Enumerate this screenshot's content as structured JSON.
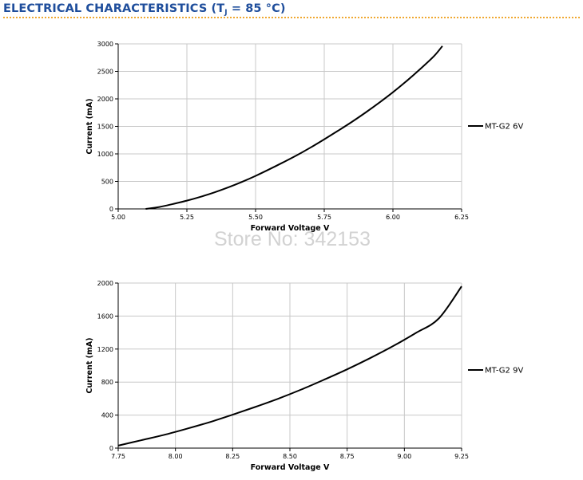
{
  "page": {
    "heading_main": "ELECTRICAL CHARACTERISTICS (T",
    "heading_sub": "J",
    "heading_tail": " = 85 °C)",
    "watermark": "Store No: 342153"
  },
  "colors": {
    "heading": "#1f4e9c",
    "rule": "#f0a830",
    "grid": "#c8c8c8",
    "curve": "#000000",
    "watermark": "#d2d2d2"
  },
  "chart_data": [
    {
      "type": "line",
      "title": "",
      "xlabel": "Forward Voltage V",
      "ylabel": "Current (mA)",
      "xlim": [
        5.0,
        6.25
      ],
      "ylim": [
        0,
        3000
      ],
      "x_ticks": [
        "5.00",
        "5.25",
        "5.50",
        "5.75",
        "6.00",
        "6.25"
      ],
      "y_ticks": [
        "0",
        "500",
        "1000",
        "1500",
        "2000",
        "2500",
        "3000"
      ],
      "grid": true,
      "legend_position": "right",
      "series": [
        {
          "name": "MT-G2 6V",
          "x": [
            5.1,
            5.15,
            5.2,
            5.25,
            5.3,
            5.35,
            5.4,
            5.45,
            5.5,
            5.55,
            5.6,
            5.65,
            5.7,
            5.75,
            5.8,
            5.85,
            5.9,
            5.95,
            6.0,
            6.05,
            6.1,
            6.15,
            6.18
          ],
          "y": [
            0,
            35,
            90,
            150,
            220,
            300,
            390,
            490,
            600,
            720,
            845,
            975,
            1115,
            1265,
            1420,
            1580,
            1750,
            1930,
            2120,
            2325,
            2545,
            2780,
            2960
          ]
        }
      ]
    },
    {
      "type": "line",
      "title": "",
      "xlabel": "Forward Voltage V",
      "ylabel": "Current (mA)",
      "xlim": [
        7.75,
        9.25
      ],
      "ylim": [
        0,
        2000
      ],
      "x_ticks": [
        "7.75",
        "8.00",
        "8.25",
        "8.50",
        "8.75",
        "9.00",
        "9.25"
      ],
      "y_ticks": [
        "0",
        "400",
        "800",
        "1200",
        "1600",
        "2000"
      ],
      "grid": true,
      "legend_position": "right",
      "series": [
        {
          "name": "MT-G2 9V",
          "x": [
            7.75,
            7.85,
            7.95,
            8.05,
            8.15,
            8.25,
            8.35,
            8.45,
            8.55,
            8.65,
            8.75,
            8.85,
            8.95,
            9.05,
            9.15,
            9.25
          ],
          "y": [
            30,
            95,
            160,
            235,
            315,
            405,
            500,
            600,
            710,
            830,
            955,
            1090,
            1235,
            1395,
            1570,
            1960
          ]
        }
      ]
    }
  ]
}
